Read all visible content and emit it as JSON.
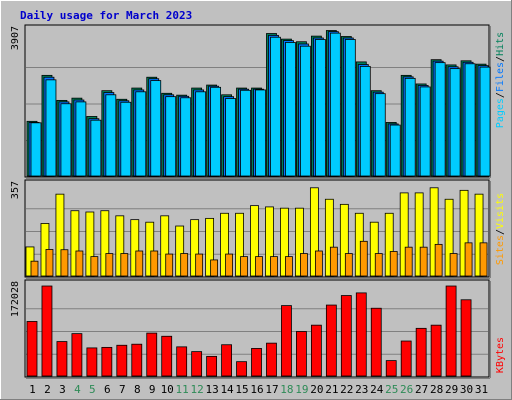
{
  "colors": {
    "background": "#c0c0c0",
    "plot": "#c0c0c0",
    "title": "#0000cc",
    "pages": "#00ccff",
    "files": "#0077ff",
    "hits": "#00805a",
    "visits": "#ffff00",
    "sites": "#ff9900",
    "kbytes": "#ff0000",
    "weekend": "#2e8b57",
    "weekday": "#000000"
  },
  "chart_data": {
    "type": "bar",
    "title": "Daily usage for March 2023",
    "categories": [
      "1",
      "2",
      "3",
      "4",
      "5",
      "6",
      "7",
      "8",
      "9",
      "10",
      "11",
      "12",
      "13",
      "14",
      "15",
      "16",
      "17",
      "18",
      "19",
      "20",
      "21",
      "22",
      "23",
      "24",
      "25",
      "26",
      "27",
      "28",
      "29",
      "30",
      "31"
    ],
    "weekend_days": [
      "4",
      "5",
      "11",
      "12",
      "18",
      "19",
      "25",
      "26"
    ],
    "panels": [
      {
        "name": "hits-files-pages",
        "max_label": "3907",
        "ylim": [
          0,
          3907
        ],
        "legend": [
          "Pages",
          "Files",
          "Hits"
        ],
        "series": [
          {
            "name": "Hits",
            "values": [
              1490,
              2720,
              2050,
              2110,
              1620,
              2310,
              2080,
              2380,
              2670,
              2240,
              2190,
              2380,
              2460,
              2200,
              2380,
              2380,
              3840,
              3690,
              3620,
              3770,
              3920,
              3760,
              3080,
              2310,
              1460,
              2720,
              2490,
              3140,
              3000,
              3110,
              3020
            ]
          },
          {
            "name": "Files",
            "values": [
              1460,
              2670,
              2010,
              2060,
              1560,
              2260,
              2040,
              2330,
              2630,
              2200,
              2160,
              2330,
              2430,
              2150,
              2350,
              2350,
              3790,
              3650,
              3560,
              3720,
              3890,
              3720,
              3010,
              2270,
              1420,
              2680,
              2450,
              3100,
              2950,
              3070,
              2980
            ]
          },
          {
            "name": "Pages",
            "values": [
              1450,
              2600,
              1960,
              2010,
              1520,
              2200,
              2000,
              2280,
              2580,
              2150,
              2120,
              2280,
              2400,
              2100,
              2320,
              2330,
              3740,
              3600,
              3500,
              3680,
              3850,
              3680,
              2960,
              2230,
              1390,
              2640,
              2410,
              3060,
              2900,
              3030,
              2940
            ]
          }
        ]
      },
      {
        "name": "visits-sites",
        "max_label": "357",
        "ylim": [
          0,
          357
        ],
        "legend": [
          "Sites",
          "Visits"
        ],
        "series": [
          {
            "name": "Visits",
            "values": [
              118,
              210,
              325,
              260,
              255,
              260,
              240,
              225,
              215,
              240,
              200,
              225,
              230,
              250,
              250,
              280,
              275,
              270,
              270,
              350,
              305,
              285,
              250,
              215,
              250,
              330,
              330,
              350,
              305,
              340,
              325
            ]
          },
          {
            "name": "Sites",
            "values": [
              62,
              108,
              107,
              102,
              80,
              92,
              92,
              102,
              102,
              90,
              92,
              90,
              67,
              90,
              80,
              80,
              80,
              80,
              92,
              102,
              117,
              92,
              140,
              92,
              100,
              117,
              117,
              128,
              92,
              134,
              134
            ]
          }
        ]
      },
      {
        "name": "kbytes",
        "max_label": "172028",
        "ylim": [
          0,
          172028
        ],
        "legend": [
          "KBytes"
        ],
        "series": [
          {
            "name": "KBytes",
            "values": [
              105000,
              172000,
              67000,
              82000,
              55000,
              56000,
              60000,
              62000,
              83000,
              77000,
              57000,
              48000,
              39000,
              61000,
              29000,
              54000,
              64000,
              135000,
              86000,
              98000,
              136000,
              154000,
              159000,
              130000,
              31000,
              68000,
              92000,
              98000,
              172000,
              146000,
              0
            ]
          }
        ]
      }
    ]
  }
}
